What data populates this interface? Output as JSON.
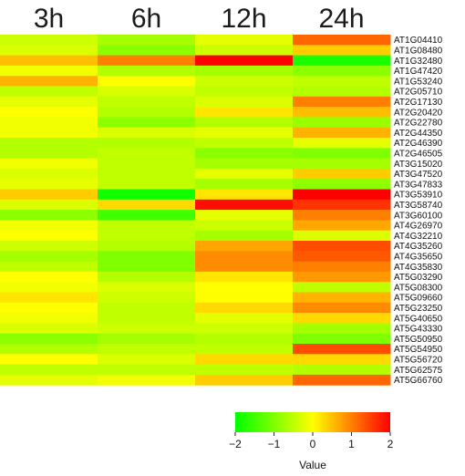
{
  "chart_data": {
    "type": "heatmap",
    "title": "",
    "xlabel": "",
    "ylabel": "",
    "columns": [
      "3h",
      "6h",
      "12h",
      "24h"
    ],
    "rows": [
      "AT1G04410",
      "AT1G08480",
      "AT1G32480",
      "AT1G47420",
      "AT1G53240",
      "AT2G05710",
      "AT2G17130",
      "AT2G20420",
      "AT2G22780",
      "AT2G44350",
      "AT2G46390",
      "AT2G46505",
      "AT3G15020",
      "AT3G47520",
      "AT3G47833",
      "AT3G53910",
      "AT3G58740",
      "AT3G60100",
      "AT4G26970",
      "AT4G32210",
      "AT4G35260",
      "AT4G35650",
      "AT4G35830",
      "AT5G03290",
      "AT5G08300",
      "AT5G09660",
      "AT5G23250",
      "AT5G40650",
      "AT5G43330",
      "AT5G50950",
      "AT5G54950",
      "AT5G56720",
      "AT5G62575",
      "AT5G66760"
    ],
    "values": [
      [
        -0.4,
        -0.7,
        -0.2,
        1.2
      ],
      [
        -0.3,
        -0.9,
        -0.4,
        0.4
      ],
      [
        0.5,
        1.0,
        2.0,
        -1.8
      ],
      [
        -0.1,
        -0.6,
        -0.7,
        -0.9
      ],
      [
        0.6,
        0.0,
        -0.4,
        -0.5
      ],
      [
        -0.5,
        -0.3,
        -0.5,
        -0.6
      ],
      [
        -0.2,
        -0.5,
        -0.3,
        1.0
      ],
      [
        0.0,
        -0.6,
        0.2,
        0.5
      ],
      [
        -0.1,
        -0.9,
        -0.6,
        -0.8
      ],
      [
        -0.1,
        -0.3,
        -0.2,
        0.6
      ],
      [
        -0.6,
        -0.6,
        -0.5,
        -0.2
      ],
      [
        -0.6,
        -0.5,
        -0.9,
        -1.0
      ],
      [
        -0.1,
        -0.5,
        -0.7,
        -0.7
      ],
      [
        -0.3,
        -0.5,
        -0.2,
        0.4
      ],
      [
        -0.2,
        -0.5,
        -0.7,
        -0.9
      ],
      [
        0.4,
        -1.9,
        0.2,
        2.0
      ],
      [
        -0.3,
        0.3,
        1.9,
        1.6
      ],
      [
        -0.9,
        -1.5,
        -0.2,
        1.0
      ],
      [
        -0.1,
        -0.5,
        -0.4,
        0.7
      ],
      [
        0.0,
        -0.5,
        -0.7,
        -0.3
      ],
      [
        -0.4,
        -0.6,
        0.7,
        1.4
      ],
      [
        -0.7,
        -1.0,
        0.9,
        1.3
      ],
      [
        -0.5,
        -1.0,
        0.9,
        1.0
      ],
      [
        0.0,
        -0.6,
        0.2,
        0.8
      ],
      [
        -0.1,
        -0.3,
        0.0,
        -0.5
      ],
      [
        0.2,
        -0.4,
        0.0,
        0.6
      ],
      [
        0.0,
        -0.5,
        0.3,
        0.9
      ],
      [
        -0.1,
        -0.5,
        -0.2,
        0.3
      ],
      [
        -0.3,
        -0.4,
        -0.4,
        -0.7
      ],
      [
        -0.9,
        -0.7,
        -0.6,
        -1.0
      ],
      [
        -0.6,
        -0.5,
        -0.5,
        1.4
      ],
      [
        0.0,
        -0.3,
        0.3,
        0.3
      ],
      [
        -0.5,
        -0.5,
        -0.5,
        -0.6
      ],
      [
        -0.2,
        -0.1,
        0.4,
        1.2
      ]
    ],
    "colorscale": {
      "min": -2,
      "max": 2,
      "low_color": "#00ff00",
      "mid_color": "#ffff00",
      "high_color": "#ff0000",
      "ticks": [
        -2,
        -1,
        0,
        1,
        2
      ],
      "tick_labels": [
        "−2",
        "−1",
        "0",
        "1",
        "2"
      ],
      "title": "Value"
    },
    "legend_position": "bottom-right",
    "grid": false
  }
}
